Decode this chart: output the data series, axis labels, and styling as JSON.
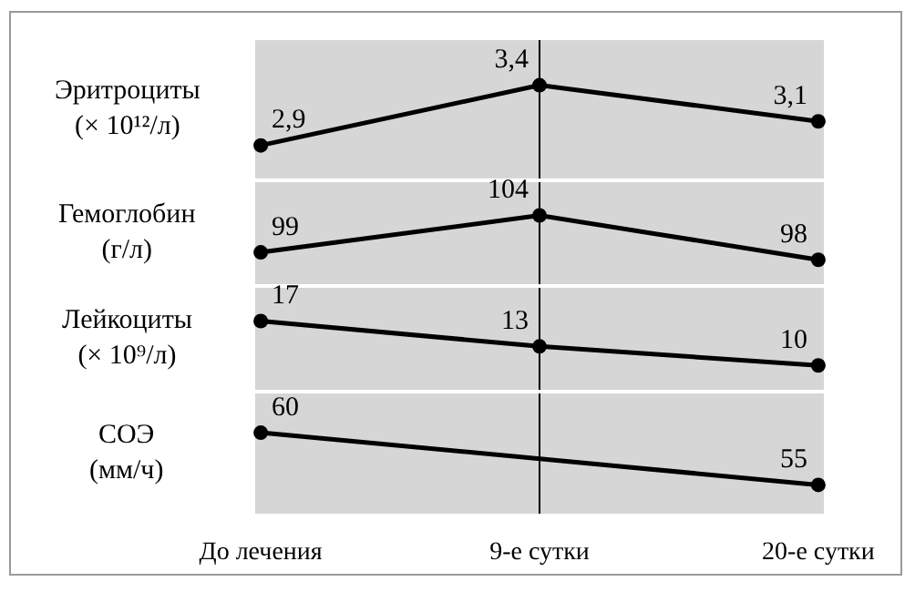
{
  "chart_data": [
    {
      "type": "line",
      "ylabel": "Эритроциты\n(× 10¹²/л)",
      "categories": [
        "До лечения",
        "9-е сутки",
        "20-е сутки"
      ],
      "marker": "circle",
      "tick_labels": false,
      "ref_lines": [
        {
          "axis": "x",
          "value": "9-е сутки"
        }
      ],
      "series": [
        {
          "color": "#000000",
          "values": [
            2.9,
            3.4,
            3.1
          ],
          "value_labels": [
            "2,9",
            "3,4",
            "3,1"
          ]
        }
      ]
    },
    {
      "type": "line",
      "ylabel": "Гемоглобин\n(г/л)",
      "categories": [
        "До лечения",
        "9-е сутки",
        "20-е сутки"
      ],
      "marker": "circle",
      "tick_labels": false,
      "ref_lines": [
        {
          "axis": "x",
          "value": "9-е сутки"
        }
      ],
      "series": [
        {
          "color": "#000000",
          "values": [
            99,
            104,
            98
          ],
          "value_labels": [
            "99",
            "104",
            "98"
          ]
        }
      ]
    },
    {
      "type": "line",
      "ylabel": "Лейкоциты\n(× 10⁹/л)",
      "categories": [
        "До лечения",
        "9-е сутки",
        "20-е сутки"
      ],
      "marker": "circle",
      "tick_labels": false,
      "ref_lines": [
        {
          "axis": "x",
          "value": "9-е сутки"
        }
      ],
      "series": [
        {
          "color": "#000000",
          "values": [
            17,
            13,
            10
          ],
          "value_labels": [
            "17",
            "13",
            "10"
          ]
        }
      ]
    },
    {
      "type": "line",
      "ylabel": "СОЭ\n(мм/ч)",
      "categories": [
        "До лечения",
        "9-е сутки",
        "20-е сутки"
      ],
      "marker": "circle",
      "tick_labels": "x",
      "ref_lines": [
        {
          "axis": "x",
          "value": "9-е сутки"
        }
      ],
      "series": [
        {
          "color": "#000000",
          "values": [
            60,
            null,
            55
          ],
          "value_labels": [
            "60",
            null,
            "55"
          ]
        }
      ]
    }
  ]
}
